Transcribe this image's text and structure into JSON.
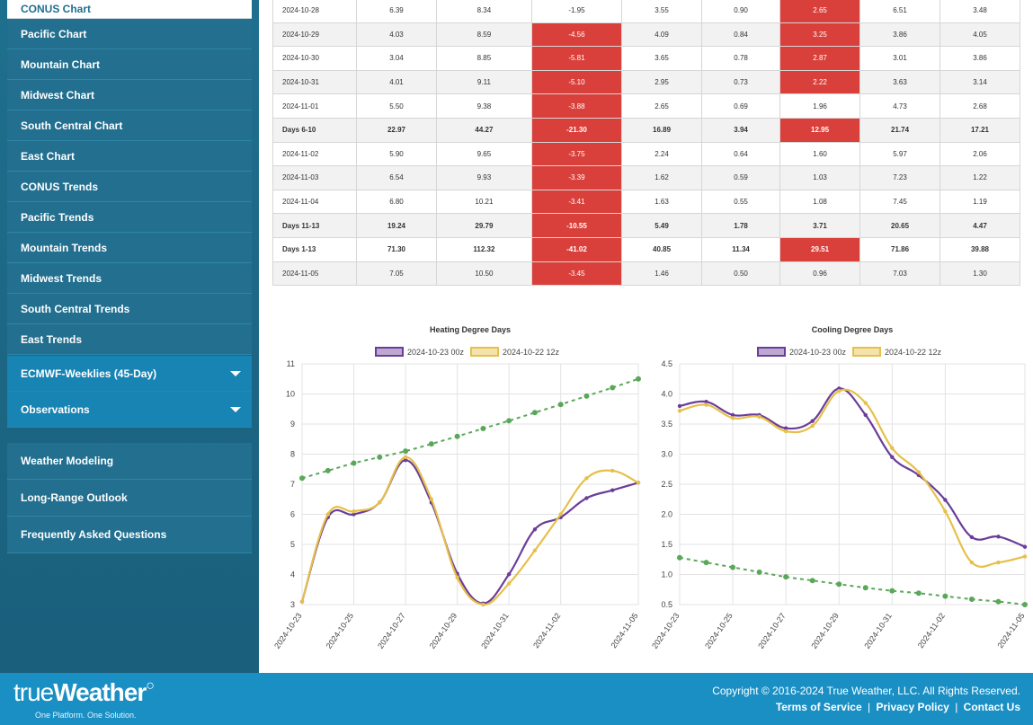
{
  "sidebar": {
    "active_item": "CONUS Chart",
    "items": [
      "Pacific Chart",
      "Mountain Chart",
      "Midwest Chart",
      "South Central Chart",
      "East Chart",
      "CONUS Trends",
      "Pacific Trends",
      "Mountain Trends",
      "Midwest Trends",
      "South Central Trends",
      "East Trends"
    ],
    "dropdowns": [
      "ECMWF-Weeklies (45-Day)",
      "Observations"
    ],
    "links": [
      "Weather Modeling",
      "Long-Range Outlook",
      "Frequently Asked Questions"
    ]
  },
  "table": {
    "rows": [
      {
        "label": "2024-10-28",
        "bold": false,
        "cells": [
          "6.39",
          "8.34",
          "-1.95",
          "3.55",
          "0.90",
          "2.65",
          "6.51",
          "3.48"
        ],
        "red": [
          5
        ]
      },
      {
        "label": "2024-10-29",
        "bold": false,
        "cells": [
          "4.03",
          "8.59",
          "-4.56",
          "4.09",
          "0.84",
          "3.25",
          "3.86",
          "4.05"
        ],
        "red": [
          2,
          5
        ]
      },
      {
        "label": "2024-10-30",
        "bold": false,
        "cells": [
          "3.04",
          "8.85",
          "-5.81",
          "3.65",
          "0.78",
          "2.87",
          "3.01",
          "3.86"
        ],
        "red": [
          2,
          5
        ]
      },
      {
        "label": "2024-10-31",
        "bold": false,
        "cells": [
          "4.01",
          "9.11",
          "-5.10",
          "2.95",
          "0.73",
          "2.22",
          "3.63",
          "3.14"
        ],
        "red": [
          2,
          5
        ]
      },
      {
        "label": "2024-11-01",
        "bold": false,
        "cells": [
          "5.50",
          "9.38",
          "-3.88",
          "2.65",
          "0.69",
          "1.96",
          "4.73",
          "2.68"
        ],
        "red": [
          2
        ]
      },
      {
        "label": "Days 6-10",
        "bold": true,
        "cells": [
          "22.97",
          "44.27",
          "-21.30",
          "16.89",
          "3.94",
          "12.95",
          "21.74",
          "17.21"
        ],
        "red": [
          2,
          5
        ]
      },
      {
        "label": "2024-11-02",
        "bold": false,
        "cells": [
          "5.90",
          "9.65",
          "-3.75",
          "2.24",
          "0.64",
          "1.60",
          "5.97",
          "2.06"
        ],
        "red": [
          2
        ]
      },
      {
        "label": "2024-11-03",
        "bold": false,
        "cells": [
          "6.54",
          "9.93",
          "-3.39",
          "1.62",
          "0.59",
          "1.03",
          "7.23",
          "1.22"
        ],
        "red": [
          2
        ]
      },
      {
        "label": "2024-11-04",
        "bold": false,
        "cells": [
          "6.80",
          "10.21",
          "-3.41",
          "1.63",
          "0.55",
          "1.08",
          "7.45",
          "1.19"
        ],
        "red": [
          2
        ]
      },
      {
        "label": "Days 11-13",
        "bold": true,
        "cells": [
          "19.24",
          "29.79",
          "-10.55",
          "5.49",
          "1.78",
          "3.71",
          "20.65",
          "4.47"
        ],
        "red": [
          2
        ]
      },
      {
        "label": "Days 1-13",
        "bold": true,
        "cells": [
          "71.30",
          "112.32",
          "-41.02",
          "40.85",
          "11.34",
          "29.51",
          "71.86",
          "39.88"
        ],
        "red": [
          2,
          5
        ]
      },
      {
        "label": "2024-11-05",
        "bold": false,
        "cells": [
          "7.05",
          "10.50",
          "-3.45",
          "1.46",
          "0.50",
          "0.96",
          "7.03",
          "1.30"
        ],
        "red": [
          2
        ]
      }
    ]
  },
  "chart_data": [
    {
      "type": "line",
      "title": "Heating Degree Days",
      "x": [
        "2024-10-23",
        "2024-10-24",
        "2024-10-25",
        "2024-10-26",
        "2024-10-27",
        "2024-10-28",
        "2024-10-29",
        "2024-10-30",
        "2024-10-31",
        "2024-11-01",
        "2024-11-02",
        "2024-11-03",
        "2024-11-04",
        "2024-11-05"
      ],
      "xticks": [
        "2024-10-23",
        "2024-10-25",
        "2024-10-27",
        "2024-10-29",
        "2024-10-31",
        "2024-11-02",
        "2024-11-05"
      ],
      "ylim": [
        3,
        11
      ],
      "yticks": [
        3,
        4,
        5,
        6,
        7,
        8,
        9,
        10,
        11
      ],
      "legend_position": "top",
      "series": [
        {
          "name": "2024-10-23 00z",
          "color": "#6a3d9a",
          "values": [
            3.1,
            5.9,
            6.0,
            6.4,
            7.8,
            6.39,
            4.03,
            3.04,
            4.01,
            5.5,
            5.9,
            6.54,
            6.8,
            7.05
          ]
        },
        {
          "name": "2024-10-22 12z",
          "color": "#e6c04a",
          "values": [
            3.1,
            6.0,
            6.1,
            6.4,
            7.9,
            6.5,
            3.9,
            3.0,
            3.7,
            4.8,
            6.0,
            7.2,
            7.45,
            7.05
          ]
        },
        {
          "color": "#5aa75a",
          "dashed": true,
          "values": [
            7.2,
            7.45,
            7.7,
            7.9,
            8.1,
            8.34,
            8.59,
            8.85,
            9.11,
            9.38,
            9.65,
            9.93,
            10.21,
            10.5
          ]
        }
      ]
    },
    {
      "type": "line",
      "title": "Cooling Degree Days",
      "x": [
        "2024-10-23",
        "2024-10-24",
        "2024-10-25",
        "2024-10-26",
        "2024-10-27",
        "2024-10-28",
        "2024-10-29",
        "2024-10-30",
        "2024-10-31",
        "2024-11-01",
        "2024-11-02",
        "2024-11-03",
        "2024-11-04",
        "2024-11-05"
      ],
      "xticks": [
        "2024-10-23",
        "2024-10-25",
        "2024-10-27",
        "2024-10-29",
        "2024-10-31",
        "2024-11-02",
        "2024-11-05"
      ],
      "ylim": [
        0.5,
        4.5
      ],
      "yticks": [
        0.5,
        1.0,
        1.5,
        2.0,
        2.5,
        3.0,
        3.5,
        4.0,
        4.5
      ],
      "legend_position": "top",
      "series": [
        {
          "name": "2024-10-23 00z",
          "color": "#6a3d9a",
          "values": [
            3.8,
            3.87,
            3.65,
            3.65,
            3.43,
            3.55,
            4.09,
            3.65,
            2.95,
            2.65,
            2.24,
            1.62,
            1.63,
            1.46
          ]
        },
        {
          "name": "2024-10-22 12z",
          "color": "#e6c04a",
          "values": [
            3.72,
            3.82,
            3.6,
            3.62,
            3.38,
            3.47,
            4.05,
            3.85,
            3.1,
            2.7,
            2.05,
            1.2,
            1.2,
            1.3
          ]
        },
        {
          "color": "#5aa75a",
          "dashed": true,
          "values": [
            1.28,
            1.2,
            1.12,
            1.04,
            0.96,
            0.9,
            0.84,
            0.78,
            0.73,
            0.69,
            0.64,
            0.59,
            0.55,
            0.5
          ]
        }
      ]
    }
  ],
  "footer": {
    "logo_light": "true",
    "logo_bold": "Weather",
    "tagline": "One Platform. One Solution.",
    "copyright": "Copyright © 2016-2024 True Weather, LLC. All Rights Reserved.",
    "terms": "Terms of Service",
    "privacy": "Privacy Policy",
    "contact": "Contact Us",
    "separator": "|"
  }
}
